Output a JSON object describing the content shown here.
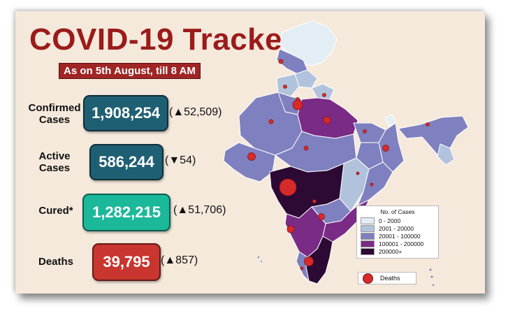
{
  "header": {
    "title": "COVID-19 Tracker",
    "subtitle": "As on 5th August, till 8 AM"
  },
  "stats": [
    {
      "label": "Confirmed\nCases",
      "value": "1,908,254",
      "change": "(▲52,509)",
      "color": "#1f5f73"
    },
    {
      "label": "Active\nCases",
      "value": "586,244",
      "change": "(▼54)",
      "color": "#1f5f73"
    },
    {
      "label": "Cured*",
      "value": "1,282,215",
      "change": "(▲51,706)",
      "color": "#1bb89a"
    },
    {
      "label": "Deaths",
      "value": "39,795",
      "change": "(▲857)",
      "color": "#c9352f"
    }
  ],
  "legend": {
    "title": "No. of Cases",
    "items": [
      {
        "label": "0 - 2000",
        "color": "#e3edf4"
      },
      {
        "label": "2001 - 20000",
        "color": "#b1c2dc"
      },
      {
        "label": "20001 - 100000",
        "color": "#7f80bf"
      },
      {
        "label": "100001 - 200000",
        "color": "#7a2b86"
      },
      {
        "label": "200000+",
        "color": "#2c0a34"
      }
    ],
    "deaths_label": "Deaths",
    "deaths_color": "#d62b2b"
  }
}
